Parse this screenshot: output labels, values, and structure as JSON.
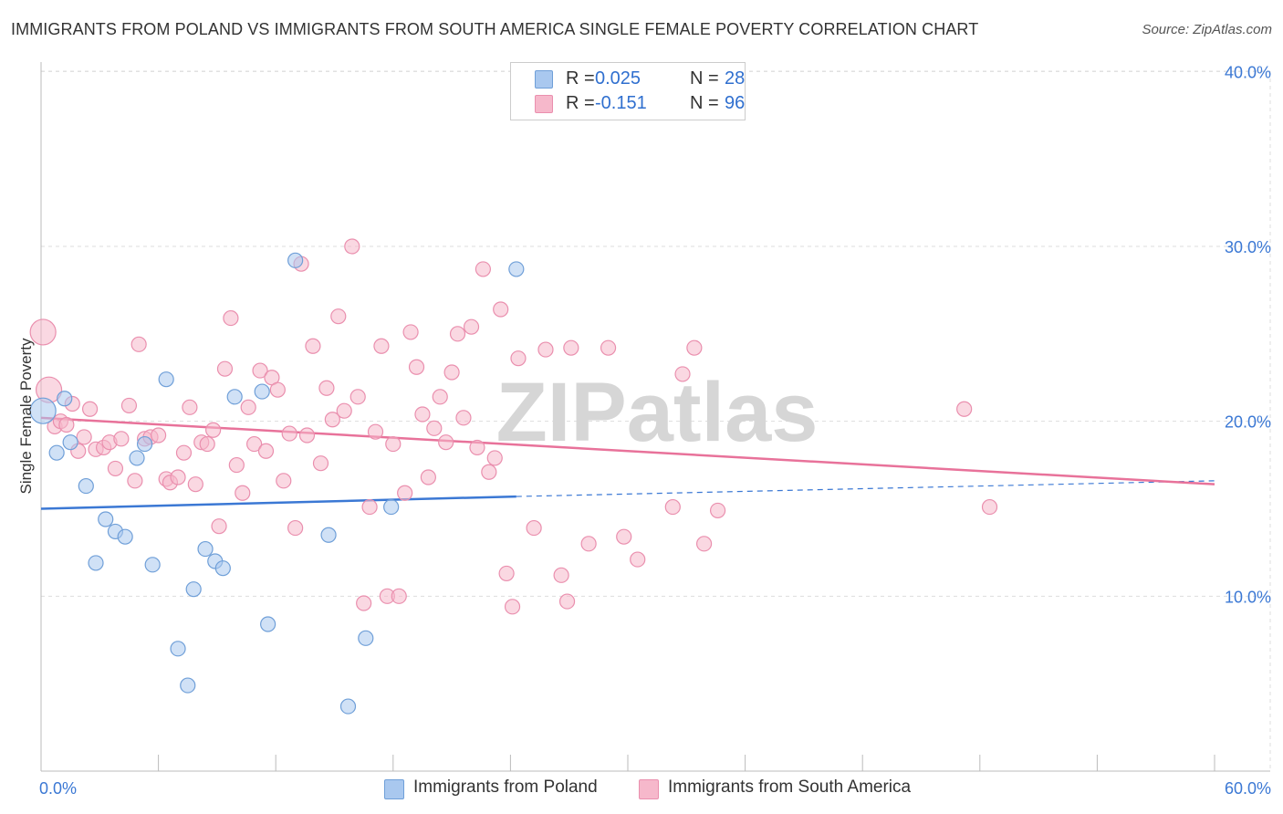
{
  "title": "IMMIGRANTS FROM POLAND VS IMMIGRANTS FROM SOUTH AMERICA SINGLE FEMALE POVERTY CORRELATION CHART",
  "source": "Source: ZipAtlas.com",
  "watermark": "ZIPatlas",
  "legend": {
    "poland": {
      "r_label": "R =",
      "r_value": "0.025",
      "n_label": "N =",
      "n_value": "28"
    },
    "south_america": {
      "r_label": "R =",
      "r_value": "-0.151",
      "n_label": "N =",
      "n_value": "96"
    }
  },
  "bottom_legend": {
    "poland": "Immigrants from Poland",
    "south_america": "Immigrants from South America"
  },
  "colors": {
    "poland_fill": "#a9c8ef",
    "poland_stroke": "#6f9fd8",
    "poland_line": "#3b78d4",
    "sa_fill": "#f6b8cb",
    "sa_stroke": "#ea8fae",
    "sa_line": "#e8729a",
    "tick_label": "#3b78d4",
    "grid": "#dddddd"
  },
  "chart_data": {
    "type": "scatter",
    "xlabel": "",
    "ylabel": "Single Female Poverty",
    "xlim": [
      0,
      60
    ],
    "ylim": [
      0,
      42
    ],
    "x_tick_labels": [
      "0.0%",
      "60.0%"
    ],
    "y_ticks": [
      10,
      20,
      30,
      40
    ],
    "y_tick_labels": [
      "10.0%",
      "20.0%",
      "30.0%",
      "40.0%"
    ],
    "grid": true,
    "legend_position": "top-center",
    "series": [
      {
        "name": "Immigrants from Poland",
        "points": [
          [
            0.1,
            20.6
          ],
          [
            0.8,
            18.2
          ],
          [
            1.2,
            21.3
          ],
          [
            1.5,
            18.8
          ],
          [
            2.3,
            16.3
          ],
          [
            2.8,
            11.9
          ],
          [
            3.3,
            14.4
          ],
          [
            3.8,
            13.7
          ],
          [
            4.3,
            13.4
          ],
          [
            4.9,
            17.9
          ],
          [
            5.3,
            18.7
          ],
          [
            5.7,
            11.8
          ],
          [
            6.4,
            22.4
          ],
          [
            7.0,
            7.0
          ],
          [
            7.5,
            4.9
          ],
          [
            7.8,
            10.4
          ],
          [
            8.4,
            12.7
          ],
          [
            8.9,
            12.0
          ],
          [
            9.3,
            11.6
          ],
          [
            9.9,
            21.4
          ],
          [
            11.3,
            21.7
          ],
          [
            11.6,
            8.4
          ],
          [
            13.0,
            29.2
          ],
          [
            14.7,
            13.5
          ],
          [
            15.7,
            3.7
          ],
          [
            16.6,
            7.6
          ],
          [
            17.9,
            15.1
          ],
          [
            24.3,
            28.7
          ]
        ],
        "trend": {
          "x": [
            0,
            24.3
          ],
          "y": [
            15.0,
            15.7
          ],
          "dashed_to": [
            60,
            16.6
          ]
        }
      },
      {
        "name": "Immigrants from South America",
        "points": [
          [
            0.1,
            25.1
          ],
          [
            0.4,
            21.8
          ],
          [
            0.7,
            19.7
          ],
          [
            1.0,
            20.0
          ],
          [
            1.3,
            19.8
          ],
          [
            1.6,
            21.0
          ],
          [
            1.9,
            18.3
          ],
          [
            2.2,
            19.1
          ],
          [
            2.5,
            20.7
          ],
          [
            2.8,
            18.4
          ],
          [
            3.2,
            18.5
          ],
          [
            3.5,
            18.8
          ],
          [
            3.8,
            17.3
          ],
          [
            4.1,
            19.0
          ],
          [
            4.5,
            20.9
          ],
          [
            4.8,
            16.6
          ],
          [
            5.0,
            24.4
          ],
          [
            5.3,
            19.0
          ],
          [
            5.6,
            19.1
          ],
          [
            6.0,
            19.2
          ],
          [
            6.4,
            16.7
          ],
          [
            6.6,
            16.5
          ],
          [
            7.0,
            16.8
          ],
          [
            7.3,
            18.2
          ],
          [
            7.6,
            20.8
          ],
          [
            7.9,
            16.4
          ],
          [
            8.2,
            18.8
          ],
          [
            8.5,
            18.7
          ],
          [
            8.8,
            19.5
          ],
          [
            9.1,
            14.0
          ],
          [
            9.4,
            23.0
          ],
          [
            9.7,
            25.9
          ],
          [
            10.0,
            17.5
          ],
          [
            10.3,
            15.9
          ],
          [
            10.6,
            20.8
          ],
          [
            10.9,
            18.7
          ],
          [
            11.2,
            22.9
          ],
          [
            11.5,
            18.3
          ],
          [
            11.8,
            22.5
          ],
          [
            12.1,
            21.8
          ],
          [
            12.4,
            16.6
          ],
          [
            12.7,
            19.3
          ],
          [
            13.0,
            13.9
          ],
          [
            13.3,
            29.0
          ],
          [
            13.6,
            19.2
          ],
          [
            13.9,
            24.3
          ],
          [
            14.3,
            17.6
          ],
          [
            14.6,
            21.9
          ],
          [
            14.9,
            20.1
          ],
          [
            15.2,
            26.0
          ],
          [
            15.5,
            20.6
          ],
          [
            15.9,
            30.0
          ],
          [
            16.2,
            21.4
          ],
          [
            16.5,
            9.6
          ],
          [
            16.8,
            15.1
          ],
          [
            17.1,
            19.4
          ],
          [
            17.4,
            24.3
          ],
          [
            17.7,
            10.0
          ],
          [
            18.0,
            18.7
          ],
          [
            18.3,
            10.0
          ],
          [
            18.6,
            15.9
          ],
          [
            18.9,
            25.1
          ],
          [
            19.2,
            23.1
          ],
          [
            19.5,
            20.4
          ],
          [
            19.8,
            16.8
          ],
          [
            20.1,
            19.6
          ],
          [
            20.4,
            21.4
          ],
          [
            20.7,
            18.8
          ],
          [
            21.0,
            22.8
          ],
          [
            21.3,
            25.0
          ],
          [
            21.6,
            20.2
          ],
          [
            22.0,
            25.4
          ],
          [
            22.3,
            18.5
          ],
          [
            22.6,
            28.7
          ],
          [
            22.9,
            17.1
          ],
          [
            23.2,
            17.9
          ],
          [
            23.5,
            26.4
          ],
          [
            23.8,
            11.3
          ],
          [
            24.1,
            9.4
          ],
          [
            24.4,
            23.6
          ],
          [
            25.2,
            13.9
          ],
          [
            25.8,
            24.1
          ],
          [
            26.6,
            11.2
          ],
          [
            26.9,
            9.7
          ],
          [
            27.1,
            24.2
          ],
          [
            28.0,
            13.0
          ],
          [
            29.0,
            24.2
          ],
          [
            29.8,
            13.4
          ],
          [
            30.5,
            12.1
          ],
          [
            32.3,
            15.1
          ],
          [
            32.8,
            22.7
          ],
          [
            33.4,
            24.2
          ],
          [
            33.9,
            13.0
          ],
          [
            34.6,
            14.9
          ],
          [
            47.2,
            20.7
          ],
          [
            48.5,
            15.1
          ]
        ],
        "trend": {
          "x": [
            0,
            60
          ],
          "y": [
            20.2,
            16.4
          ]
        }
      }
    ]
  }
}
